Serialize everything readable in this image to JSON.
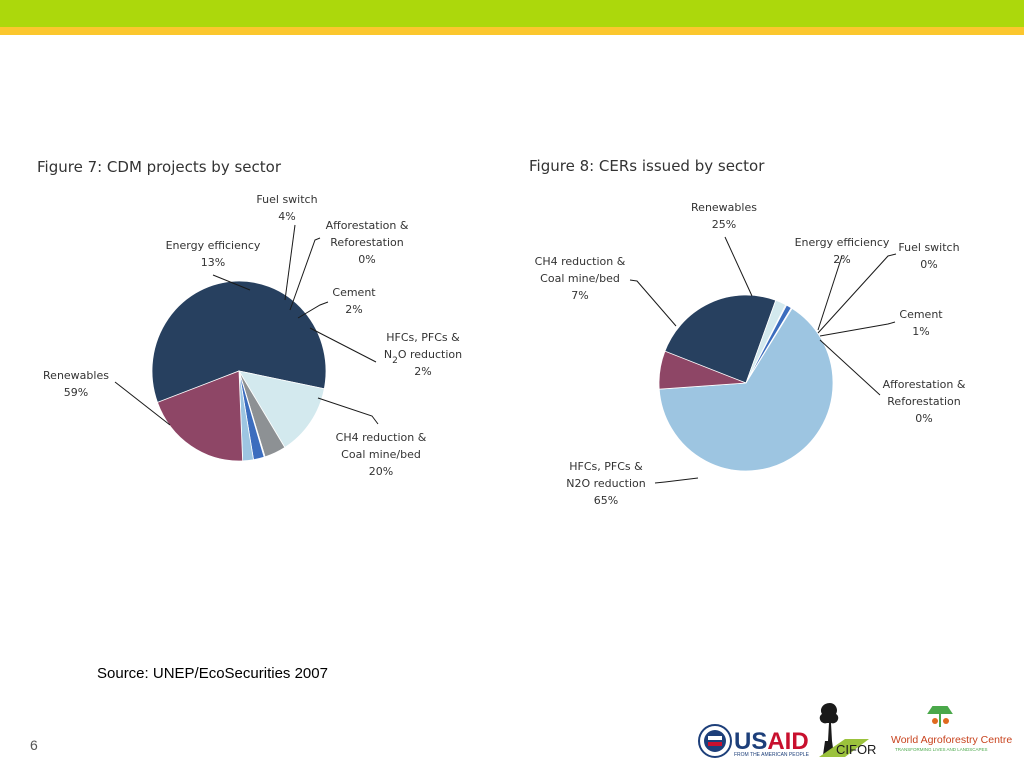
{
  "colors": {
    "top_bar_green": "#acd80c",
    "top_bar_yellow": "#fbc72e",
    "renewables": "#27405f",
    "energy_efficiency": "#d3e9ee",
    "fuel_switch": "#8d9194",
    "afforestation": "#5a6e86",
    "cement": "#3c6dbe",
    "hfcs": "#9dc5e1",
    "ch4": "#8e4666"
  },
  "chart_data": [
    {
      "type": "pie",
      "title": "Figure 7: CDM projects by sector",
      "slices": [
        {
          "key": "renewables",
          "name": "Renewables",
          "value": 59,
          "label": "59%"
        },
        {
          "key": "energy_efficiency",
          "name": "Energy efficiency",
          "value": 13,
          "label": "13%"
        },
        {
          "key": "fuel_switch",
          "name": "Fuel switch",
          "value": 4,
          "label": "4%"
        },
        {
          "key": "afforestation",
          "name_lines": [
            "Afforestation &",
            "Reforestation"
          ],
          "value": 0,
          "label": "0%"
        },
        {
          "key": "cement",
          "name": "Cement",
          "value": 2,
          "label": "2%"
        },
        {
          "key": "hfcs",
          "name_lines": [
            "HFCs, PFCs &",
            "N2O reduction"
          ],
          "value": 2,
          "label": "2%"
        },
        {
          "key": "ch4",
          "name_lines": [
            "CH4 reduction &",
            "Coal mine/bed"
          ],
          "value": 20,
          "label": "20%"
        }
      ]
    },
    {
      "type": "pie",
      "title": "Figure 8: CERs issued by sector",
      "slices": [
        {
          "key": "renewables",
          "name": "Renewables",
          "value": 25,
          "label": "25%"
        },
        {
          "key": "energy_efficiency",
          "name": "Energy efficiency",
          "value": 2,
          "label": "2%"
        },
        {
          "key": "fuel_switch",
          "name": "Fuel switch",
          "value": 0,
          "label": "0%"
        },
        {
          "key": "cement",
          "name": "Cement",
          "value": 1,
          "label": "1%"
        },
        {
          "key": "afforestation",
          "name_lines": [
            "Afforestation &",
            "Reforestation"
          ],
          "value": 0,
          "label": "0%"
        },
        {
          "key": "hfcs",
          "name_lines": [
            "HFCs, PFCs &",
            "N2O reduction"
          ],
          "value": 65,
          "label": "65%"
        },
        {
          "key": "ch4",
          "name_lines": [
            "CH4 reduction &",
            "Coal mine/bed"
          ],
          "value": 7,
          "label": "7%"
        }
      ]
    }
  ],
  "source_text": "Source: UNEP/EcoSecurities  2007",
  "page_number": "6",
  "logos": {
    "usaid_word": "USAID",
    "usaid_tagline": "FROM THE AMERICAN PEOPLE",
    "cifor": "CIFOR",
    "agroforestry_name": "World Agroforestry Centre",
    "agroforestry_tagline": "TRANSFORMING LIVES AND LANDSCAPES"
  }
}
